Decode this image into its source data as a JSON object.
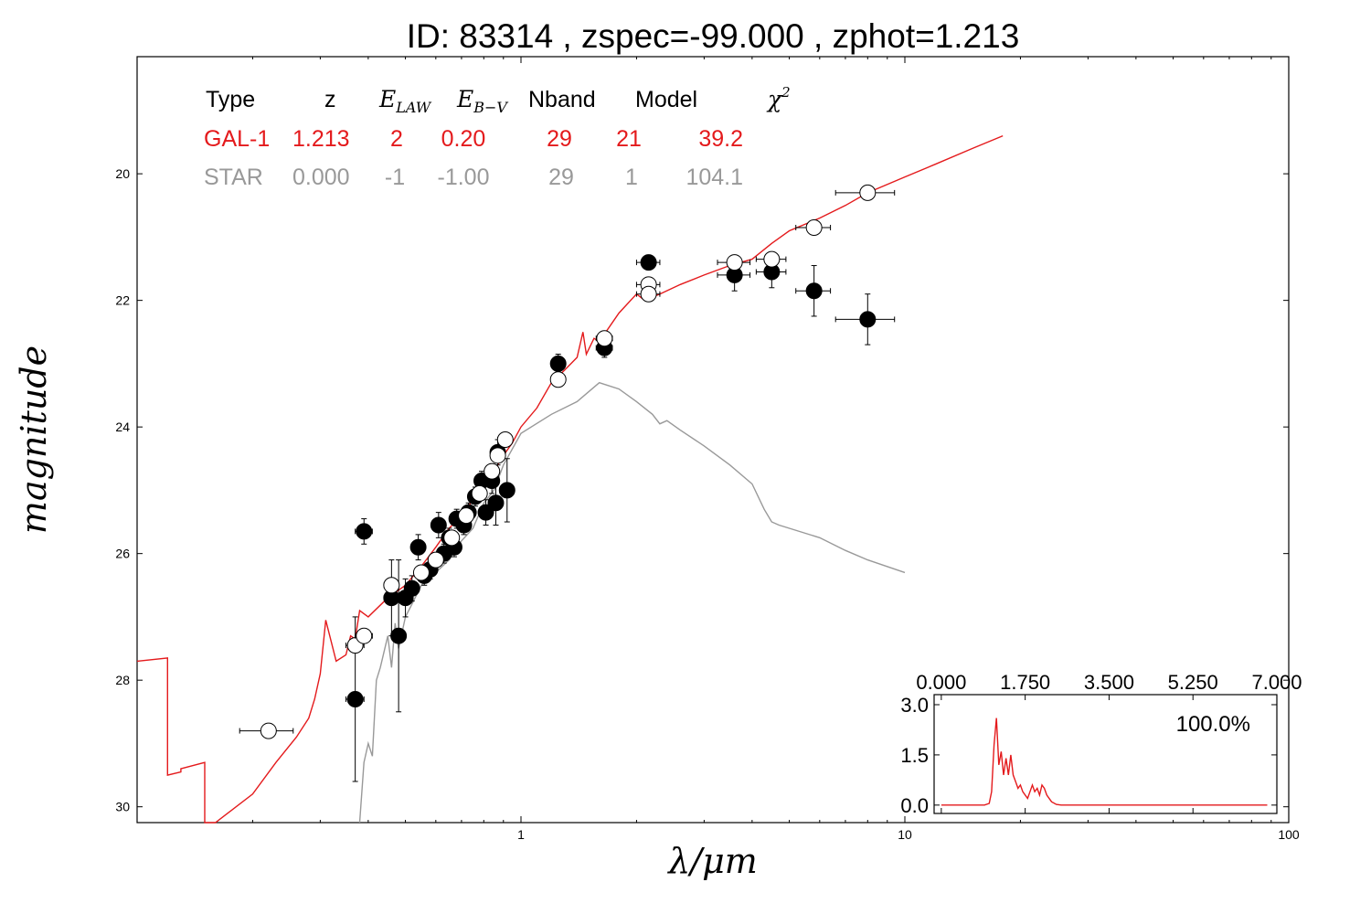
{
  "title": "ID:  83314 , zspec=-99.000 , zphot=1.213",
  "chart_data": {
    "type": "scatter",
    "title": "ID:  83314 , zspec=-99.000 , zphot=1.213",
    "xlabel": "λ/μm",
    "ylabel": "magnitude",
    "x_scale": "log",
    "xlim": [
      0.1,
      100
    ],
    "ylim": [
      30.25,
      18.15
    ],
    "y_inverted": true,
    "x_ticks": [
      {
        "value": 1,
        "label": "1"
      },
      {
        "value": 10,
        "label": "10"
      },
      {
        "value": 100,
        "label": "100"
      }
    ],
    "y_ticks": [
      {
        "value": 20,
        "label": "20"
      },
      {
        "value": 22,
        "label": "22"
      },
      {
        "value": 24,
        "label": "24"
      },
      {
        "value": 26,
        "label": "26"
      },
      {
        "value": 28,
        "label": "28"
      },
      {
        "value": 30,
        "label": "30"
      }
    ],
    "table": {
      "headers": [
        "Type",
        "z",
        "E_LAW",
        "E_B-V",
        "Nband",
        "Model",
        "χ²"
      ],
      "rows": [
        {
          "color": "#e41a1c",
          "cells": [
            "GAL-1",
            "1.213",
            "2",
            "0.20",
            "29",
            "21",
            "39.2"
          ]
        },
        {
          "color": "#999999",
          "cells": [
            "STAR",
            "0.000",
            "-1",
            "-1.00",
            "29",
            "1",
            "104.1"
          ]
        }
      ]
    },
    "series": [
      {
        "name": "GAL-1",
        "kind": "line",
        "color": "#e41a1c",
        "x": [
          0.1,
          0.12,
          0.12,
          0.13,
          0.13,
          0.15,
          0.15,
          0.16,
          0.16,
          0.2,
          0.23,
          0.26,
          0.28,
          0.29,
          0.3,
          0.31,
          0.33,
          0.35,
          0.36,
          0.37,
          0.38,
          0.4,
          0.45,
          0.5,
          0.55,
          0.6,
          0.65,
          0.7,
          0.75,
          0.8,
          0.85,
          0.9,
          0.95,
          1.0,
          1.1,
          1.2,
          1.3,
          1.4,
          1.45,
          1.48,
          1.55,
          1.6,
          1.8,
          2.0,
          2.1,
          2.3,
          2.6,
          3.0,
          3.5,
          4.0,
          4.5,
          5.0,
          6.0,
          7.0,
          8.0,
          10.0,
          12.0,
          15.0,
          18.0
        ],
        "y": [
          27.7,
          27.65,
          29.5,
          29.45,
          29.4,
          29.3,
          30.3,
          30.3,
          30.3,
          29.8,
          29.3,
          28.9,
          28.6,
          28.3,
          27.9,
          27.05,
          27.7,
          27.6,
          27.3,
          27.35,
          26.9,
          27.0,
          26.7,
          26.5,
          26.2,
          25.9,
          25.6,
          25.4,
          25.15,
          24.95,
          24.7,
          24.45,
          24.25,
          24.0,
          23.7,
          23.3,
          23.1,
          22.9,
          22.5,
          22.85,
          22.6,
          22.65,
          22.2,
          21.9,
          22.0,
          21.9,
          21.75,
          21.6,
          21.45,
          21.35,
          21.1,
          20.9,
          20.7,
          20.5,
          20.3,
          20.05,
          19.85,
          19.6,
          19.4
        ]
      },
      {
        "name": "STAR",
        "kind": "line",
        "color": "#999999",
        "x": [
          0.38,
          0.39,
          0.4,
          0.41,
          0.42,
          0.43,
          0.45,
          0.46,
          0.47,
          0.48,
          0.5,
          0.52,
          0.55,
          0.6,
          0.65,
          0.7,
          0.75,
          0.8,
          0.85,
          0.9,
          1.0,
          1.2,
          1.4,
          1.6,
          1.8,
          2.0,
          2.2,
          2.3,
          2.4,
          2.6,
          3.0,
          3.5,
          4.0,
          4.3,
          4.5,
          4.7,
          5.0,
          6.0,
          7.0,
          8.0,
          10.0
        ],
        "y": [
          30.3,
          29.3,
          29.0,
          29.2,
          28.0,
          27.8,
          27.3,
          27.8,
          27.1,
          27.5,
          27.0,
          26.8,
          26.5,
          26.3,
          26.1,
          25.8,
          25.6,
          25.2,
          25.0,
          24.6,
          24.1,
          23.8,
          23.6,
          23.3,
          23.4,
          23.6,
          23.8,
          23.95,
          23.9,
          24.05,
          24.3,
          24.6,
          24.9,
          25.3,
          25.5,
          25.55,
          25.6,
          25.75,
          25.95,
          26.1,
          26.3
        ]
      },
      {
        "name": "observed",
        "kind": "points",
        "fill": "#000000",
        "points": [
          {
            "x": 0.39,
            "y": 25.65,
            "xerr": 0.02,
            "yerr": 0.2
          },
          {
            "x": 0.37,
            "y": 28.3,
            "xerr": 0.02,
            "yerr": 1.3
          },
          {
            "x": 0.46,
            "y": 26.7,
            "xerr": 0.02,
            "yerr": 0.6
          },
          {
            "x": 0.48,
            "y": 27.3,
            "xerr": 0.02,
            "yerr": 1.2
          },
          {
            "x": 0.5,
            "y": 26.7,
            "xerr": 0.02,
            "yerr": 0.3
          },
          {
            "x": 0.52,
            "y": 26.55,
            "xerr": 0.02,
            "yerr": 0.2
          },
          {
            "x": 0.54,
            "y": 25.9,
            "xerr": 0.02,
            "yerr": 0.2
          },
          {
            "x": 0.56,
            "y": 26.35,
            "xerr": 0.02,
            "yerr": 0.15
          },
          {
            "x": 0.58,
            "y": 26.25,
            "xerr": 0.02,
            "yerr": 0.15
          },
          {
            "x": 0.61,
            "y": 25.55,
            "xerr": 0.02,
            "yerr": 0.2
          },
          {
            "x": 0.63,
            "y": 26.0,
            "xerr": 0.02,
            "yerr": 0.15
          },
          {
            "x": 0.65,
            "y": 25.75,
            "xerr": 0.02,
            "yerr": 0.15
          },
          {
            "x": 0.67,
            "y": 25.9,
            "xerr": 0.02,
            "yerr": 0.15
          },
          {
            "x": 0.68,
            "y": 25.45,
            "xerr": 0.02,
            "yerr": 0.15
          },
          {
            "x": 0.71,
            "y": 25.55,
            "xerr": 0.02,
            "yerr": 0.15
          },
          {
            "x": 0.73,
            "y": 25.35,
            "xerr": 0.02,
            "yerr": 0.15
          },
          {
            "x": 0.76,
            "y": 25.1,
            "xerr": 0.02,
            "yerr": 0.15
          },
          {
            "x": 0.79,
            "y": 24.85,
            "xerr": 0.02,
            "yerr": 0.15
          },
          {
            "x": 0.81,
            "y": 25.35,
            "xerr": 0.02,
            "yerr": 0.2
          },
          {
            "x": 0.84,
            "y": 24.85,
            "xerr": 0.02,
            "yerr": 0.2
          },
          {
            "x": 0.86,
            "y": 25.2,
            "xerr": 0.02,
            "yerr": 0.35
          },
          {
            "x": 0.87,
            "y": 24.4,
            "xerr": 0.02,
            "yerr": 0.2
          },
          {
            "x": 0.92,
            "y": 25.0,
            "xerr": 0.04,
            "yerr": 0.5
          },
          {
            "x": 1.25,
            "y": 23.0,
            "xerr": 0.05,
            "yerr": 0.15
          },
          {
            "x": 1.65,
            "y": 22.75,
            "xerr": 0.08,
            "yerr": 0.15
          },
          {
            "x": 2.15,
            "y": 21.4,
            "xerr": 0.15,
            "yerr": 0.1
          },
          {
            "x": 3.6,
            "y": 21.6,
            "xerr": 0.35,
            "yerr": 0.25
          },
          {
            "x": 4.5,
            "y": 21.55,
            "xerr": 0.4,
            "yerr": 0.25
          },
          {
            "x": 5.8,
            "y": 21.85,
            "xerr": 0.6,
            "yerr": 0.4
          },
          {
            "x": 8.0,
            "y": 22.3,
            "xerr": 1.4,
            "yerr": 0.4
          }
        ]
      },
      {
        "name": "model",
        "kind": "points",
        "fill": "#ffffff",
        "points": [
          {
            "x": 0.22,
            "y": 28.8,
            "xerr": 0.035,
            "yerr": 0
          },
          {
            "x": 0.37,
            "y": 27.45,
            "xerr": 0.02,
            "yerr": 0
          },
          {
            "x": 0.39,
            "y": 27.3,
            "xerr": 0.02,
            "yerr": 0
          },
          {
            "x": 0.46,
            "y": 26.5,
            "xerr": 0.02,
            "yerr": 0
          },
          {
            "x": 0.55,
            "y": 26.3,
            "xerr": 0.02,
            "yerr": 0
          },
          {
            "x": 0.6,
            "y": 26.1,
            "xerr": 0.02,
            "yerr": 0
          },
          {
            "x": 0.66,
            "y": 25.75,
            "xerr": 0.02,
            "yerr": 0
          },
          {
            "x": 0.72,
            "y": 25.4,
            "xerr": 0.02,
            "yerr": 0
          },
          {
            "x": 0.78,
            "y": 25.05,
            "xerr": 0.02,
            "yerr": 0
          },
          {
            "x": 0.84,
            "y": 24.7,
            "xerr": 0.02,
            "yerr": 0
          },
          {
            "x": 0.87,
            "y": 24.45,
            "xerr": 0.02,
            "yerr": 0
          },
          {
            "x": 0.91,
            "y": 24.2,
            "xerr": 0.04,
            "yerr": 0
          },
          {
            "x": 1.25,
            "y": 23.25,
            "xerr": 0.05,
            "yerr": 0
          },
          {
            "x": 1.65,
            "y": 22.6,
            "xerr": 0.08,
            "yerr": 0
          },
          {
            "x": 2.15,
            "y": 21.75,
            "xerr": 0.15,
            "yerr": 0
          },
          {
            "x": 2.15,
            "y": 21.9,
            "xerr": 0.15,
            "yerr": 0
          },
          {
            "x": 3.6,
            "y": 21.4,
            "xerr": 0.35,
            "yerr": 0
          },
          {
            "x": 4.5,
            "y": 21.35,
            "xerr": 0.4,
            "yerr": 0
          },
          {
            "x": 5.8,
            "y": 20.85,
            "xerr": 0.6,
            "yerr": 0
          },
          {
            "x": 8.0,
            "y": 20.3,
            "xerr": 1.4,
            "yerr": 0
          }
        ]
      }
    ],
    "inset": {
      "type": "line",
      "xlim": [
        -0.15,
        7.0
      ],
      "ylim": [
        -0.25,
        3.3
      ],
      "x_ticks": [
        {
          "value": 0,
          "label": "0.000"
        },
        {
          "value": 1.75,
          "label": "1.750"
        },
        {
          "value": 3.5,
          "label": "3.500"
        },
        {
          "value": 5.25,
          "label": "5.250"
        },
        {
          "value": 7.0,
          "label": "7.000"
        }
      ],
      "y_ticks": [
        {
          "value": 0,
          "label": "0.0"
        },
        {
          "value": 1.5,
          "label": "1.5"
        },
        {
          "value": 3.0,
          "label": "3.0"
        }
      ],
      "annotation": "100.0%",
      "color": "#e41a1c",
      "x": [
        0,
        0.9,
        1.0,
        1.05,
        1.1,
        1.15,
        1.2,
        1.25,
        1.3,
        1.35,
        1.4,
        1.45,
        1.5,
        1.55,
        1.6,
        1.65,
        1.7,
        1.75,
        1.8,
        1.85,
        1.9,
        1.95,
        2.0,
        2.05,
        2.1,
        2.15,
        2.2,
        2.3,
        2.4,
        2.5,
        6.8
      ],
      "y": [
        0,
        0,
        0.05,
        0.4,
        1.8,
        2.6,
        1.2,
        1.6,
        0.9,
        1.4,
        0.9,
        1.5,
        0.9,
        0.7,
        0.5,
        0.6,
        0.4,
        0.3,
        0.2,
        0.4,
        0.6,
        0.4,
        0.5,
        0.3,
        0.6,
        0.5,
        0.3,
        0.1,
        0.02,
        0,
        0
      ]
    }
  }
}
